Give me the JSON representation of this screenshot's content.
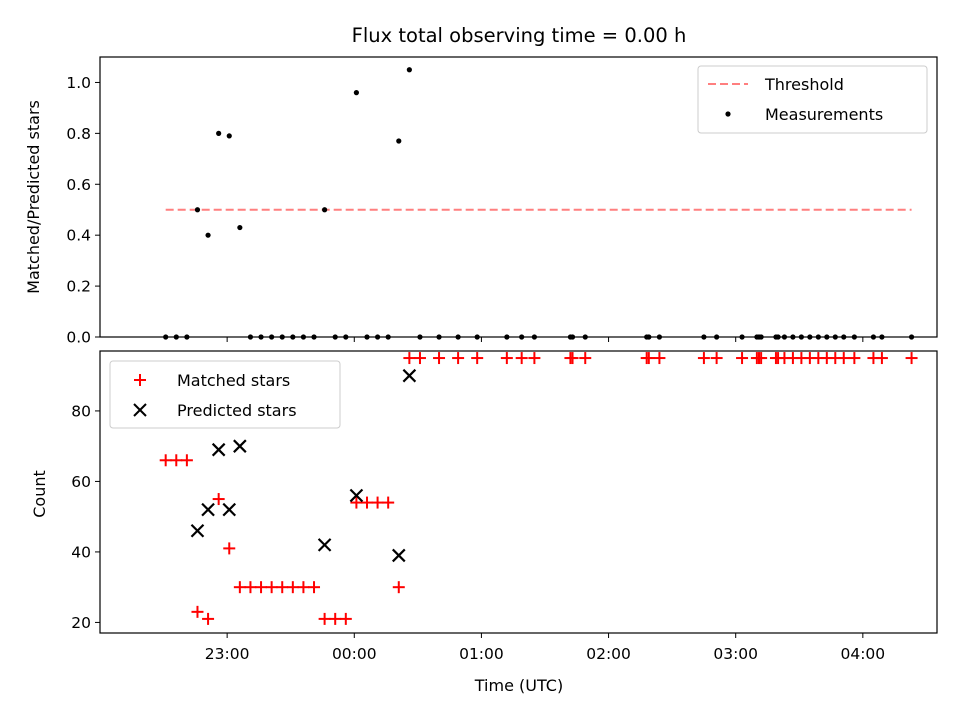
{
  "chart_data": {
    "title": "Flux total observing time = 0.00 h",
    "xlabel": "Time (UTC)",
    "x_ticks": [
      "23:00",
      "00:00",
      "01:00",
      "02:00",
      "03:00",
      "04:00"
    ],
    "panels": [
      {
        "type": "scatter",
        "ylabel": "Matched/Predicted stars",
        "ylim": [
          0,
          1.1
        ],
        "y_ticks": [
          "0.0",
          "0.2",
          "0.4",
          "0.6",
          "0.8",
          "1.0"
        ],
        "legend": [
          "Threshold",
          "Measurements"
        ],
        "legend_position": "top-right",
        "threshold": {
          "name": "Threshold",
          "value": 0.5,
          "x": [
            "22:31",
            "04:23"
          ],
          "color": "#ff7f7f"
        },
        "series": [
          {
            "name": "Measurements",
            "color": "#000000",
            "points": [
              [
                "22:31",
                0.0
              ],
              [
                "22:36",
                0.0
              ],
              [
                "22:41",
                0.0
              ],
              [
                "22:46",
                0.5
              ],
              [
                "22:51",
                0.4
              ],
              [
                "22:56",
                0.8
              ],
              [
                "23:01",
                0.79
              ],
              [
                "23:06",
                0.43
              ],
              [
                "23:11",
                0.0
              ],
              [
                "23:16",
                0.0
              ],
              [
                "23:21",
                0.0
              ],
              [
                "23:26",
                0.0
              ],
              [
                "23:31",
                0.0
              ],
              [
                "23:36",
                0.0
              ],
              [
                "23:41",
                0.0
              ],
              [
                "23:46",
                0.5
              ],
              [
                "23:51",
                0.0
              ],
              [
                "23:56",
                0.0
              ],
              [
                "00:01",
                0.96
              ],
              [
                "00:06",
                0.0
              ],
              [
                "00:11",
                0.0
              ],
              [
                "00:16",
                0.0
              ],
              [
                "00:21",
                0.77
              ],
              [
                "00:26",
                1.05
              ],
              [
                "00:31",
                0.0
              ],
              [
                "00:40",
                0.0
              ],
              [
                "00:49",
                0.0
              ],
              [
                "00:58",
                0.0
              ],
              [
                "01:12",
                0.0
              ],
              [
                "01:19",
                0.0
              ],
              [
                "01:25",
                0.0
              ],
              [
                "01:42",
                0.0
              ],
              [
                "01:43",
                0.0
              ],
              [
                "01:49",
                0.0
              ],
              [
                "02:18",
                0.0
              ],
              [
                "02:19",
                0.0
              ],
              [
                "02:24",
                0.0
              ],
              [
                "02:45",
                0.0
              ],
              [
                "02:51",
                0.0
              ],
              [
                "03:03",
                0.0
              ],
              [
                "03:10",
                0.0
              ],
              [
                "03:11",
                0.0
              ],
              [
                "03:12",
                0.0
              ],
              [
                "03:19",
                0.0
              ],
              [
                "03:20",
                0.0
              ],
              [
                "03:23",
                0.0
              ],
              [
                "03:27",
                0.0
              ],
              [
                "03:31",
                0.0
              ],
              [
                "03:35",
                0.0
              ],
              [
                "03:39",
                0.0
              ],
              [
                "03:43",
                0.0
              ],
              [
                "03:47",
                0.0
              ],
              [
                "03:51",
                0.0
              ],
              [
                "03:56",
                0.0
              ],
              [
                "04:05",
                0.0
              ],
              [
                "04:09",
                0.0
              ],
              [
                "04:23",
                0.0
              ]
            ]
          }
        ]
      },
      {
        "type": "scatter",
        "ylabel": "Count",
        "ylim": [
          17,
          97
        ],
        "y_ticks": [
          "20",
          "40",
          "60",
          "80"
        ],
        "legend": [
          "Matched stars",
          "Predicted stars"
        ],
        "legend_position": "top-left",
        "series": [
          {
            "name": "Matched stars",
            "marker": "+",
            "color": "#ff0000",
            "points": [
              [
                "22:31",
                66
              ],
              [
                "22:36",
                66
              ],
              [
                "22:41",
                66
              ],
              [
                "22:46",
                23
              ],
              [
                "22:51",
                21
              ],
              [
                "22:56",
                55
              ],
              [
                "23:01",
                41
              ],
              [
                "23:06",
                30
              ],
              [
                "23:11",
                30
              ],
              [
                "23:16",
                30
              ],
              [
                "23:21",
                30
              ],
              [
                "23:26",
                30
              ],
              [
                "23:31",
                30
              ],
              [
                "23:36",
                30
              ],
              [
                "23:41",
                30
              ],
              [
                "23:46",
                21
              ],
              [
                "23:51",
                21
              ],
              [
                "23:56",
                21
              ],
              [
                "00:01",
                54
              ],
              [
                "00:06",
                54
              ],
              [
                "00:11",
                54
              ],
              [
                "00:16",
                54
              ],
              [
                "00:21",
                30
              ],
              [
                "00:26",
                95
              ],
              [
                "00:31",
                95
              ],
              [
                "00:40",
                95
              ],
              [
                "00:49",
                95
              ],
              [
                "00:58",
                95
              ],
              [
                "01:12",
                95
              ],
              [
                "01:19",
                95
              ],
              [
                "01:25",
                95
              ],
              [
                "01:42",
                95
              ],
              [
                "01:43",
                95
              ],
              [
                "01:49",
                95
              ],
              [
                "02:18",
                95
              ],
              [
                "02:19",
                95
              ],
              [
                "02:24",
                95
              ],
              [
                "02:45",
                95
              ],
              [
                "02:51",
                95
              ],
              [
                "03:03",
                95
              ],
              [
                "03:10",
                95
              ],
              [
                "03:11",
                95
              ],
              [
                "03:12",
                95
              ],
              [
                "03:19",
                95
              ],
              [
                "03:20",
                95
              ],
              [
                "03:23",
                95
              ],
              [
                "03:27",
                95
              ],
              [
                "03:31",
                95
              ],
              [
                "03:35",
                95
              ],
              [
                "03:39",
                95
              ],
              [
                "03:43",
                95
              ],
              [
                "03:47",
                95
              ],
              [
                "03:51",
                95
              ],
              [
                "03:56",
                95
              ],
              [
                "04:05",
                95
              ],
              [
                "04:09",
                95
              ],
              [
                "04:23",
                95
              ]
            ]
          },
          {
            "name": "Predicted stars",
            "marker": "x",
            "color": "#000000",
            "points": [
              [
                "22:46",
                46
              ],
              [
                "22:51",
                52
              ],
              [
                "22:56",
                69
              ],
              [
                "23:01",
                52
              ],
              [
                "23:06",
                70
              ],
              [
                "23:46",
                42
              ],
              [
                "00:01",
                56
              ],
              [
                "00:21",
                39
              ],
              [
                "00:26",
                90
              ]
            ]
          }
        ]
      }
    ]
  }
}
